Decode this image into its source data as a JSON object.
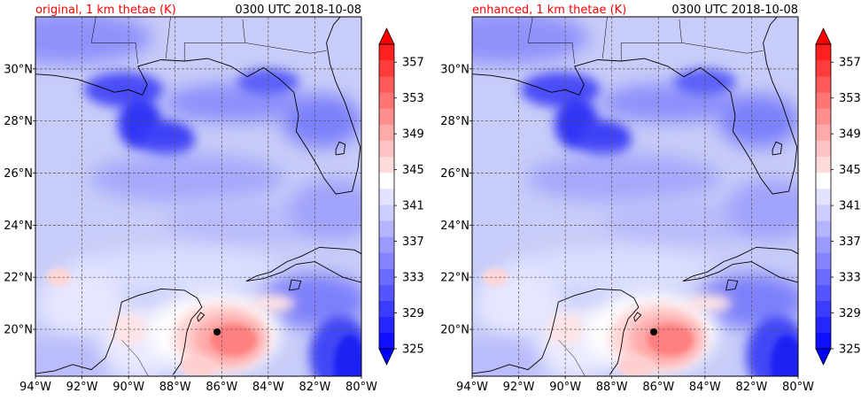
{
  "panels": [
    {
      "id": "original",
      "title_left": "original, 1 km thetae (K)",
      "title_right": "0300 UTC 2018-10-08"
    },
    {
      "id": "enhanced",
      "title_left": "enhanced, 1 km thetae (K)",
      "title_right": "0300 UTC 2018-10-08"
    }
  ],
  "colors": {
    "title_left": "#ff0000",
    "title_right": "#000000",
    "ocean_base": "#c8ccf8",
    "coastline": "#000000",
    "grid": "#555555",
    "storm_center_marker": "#000000"
  },
  "chart_data": [
    {
      "type": "heatmap",
      "title": "original, 1 km thetae (K)",
      "subtitle": "0300 UTC 2018-10-08",
      "x_ticks": [
        "94°W",
        "92°W",
        "90°W",
        "88°W",
        "86°W",
        "84°W",
        "82°W",
        "80°W"
      ],
      "y_ticks": [
        "20°N",
        "22°N",
        "24°N",
        "26°N",
        "28°N",
        "30°N"
      ],
      "xlim": [
        -94,
        -80
      ],
      "ylim": [
        18.2,
        32
      ],
      "grid": true,
      "colorbar": {
        "ticks": [
          "325",
          "329",
          "333",
          "337",
          "341",
          "345",
          "349",
          "353",
          "357"
        ],
        "levels": [
          325,
          327,
          329,
          331,
          333,
          335,
          337,
          339,
          341,
          343,
          345,
          347,
          349,
          351,
          353,
          355,
          357,
          359
        ],
        "extend": "both",
        "colors": [
          "#0f0fff",
          "#2525ff",
          "#3c3cff",
          "#5555ff",
          "#6b6bff",
          "#8585ff",
          "#9b9bff",
          "#b5b5ff",
          "#cdcdff",
          "#e3e3ff",
          "#ffffff",
          "#ffdcdc",
          "#ffc3c3",
          "#ffa9a9",
          "#ff8f8f",
          "#ff7474",
          "#ff5a5a",
          "#ff3c3c",
          "#ff1f1f"
        ],
        "extend_low_color": "#0000ff",
        "extend_high_color": "#ff0000"
      },
      "storm_center": {
        "lon": -86.2,
        "lat": 19.9
      }
    },
    {
      "type": "heatmap",
      "title": "enhanced, 1 km thetae (K)",
      "subtitle": "0300 UTC 2018-10-08",
      "x_ticks": [
        "94°W",
        "92°W",
        "90°W",
        "88°W",
        "86°W",
        "84°W",
        "82°W",
        "80°W"
      ],
      "y_ticks": [
        "20°N",
        "22°N",
        "24°N",
        "26°N",
        "28°N",
        "30°N"
      ],
      "xlim": [
        -94,
        -80
      ],
      "ylim": [
        18.2,
        32
      ],
      "grid": true,
      "colorbar": {
        "ticks": [
          "325",
          "329",
          "333",
          "337",
          "341",
          "345",
          "349",
          "353",
          "357"
        ],
        "levels": [
          325,
          327,
          329,
          331,
          333,
          335,
          337,
          339,
          341,
          343,
          345,
          347,
          349,
          351,
          353,
          355,
          357,
          359
        ],
        "extend": "both",
        "colors": [
          "#0f0fff",
          "#2525ff",
          "#3c3cff",
          "#5555ff",
          "#6b6bff",
          "#8585ff",
          "#9b9bff",
          "#b5b5ff",
          "#cdcdff",
          "#e3e3ff",
          "#ffffff",
          "#ffdcdc",
          "#ffc3c3",
          "#ffa9a9",
          "#ff8f8f",
          "#ff7474",
          "#ff5a5a",
          "#ff3c3c",
          "#ff1f1f"
        ],
        "extend_low_color": "#0000ff",
        "extend_high_color": "#ff0000"
      },
      "storm_center": {
        "lon": -86.2,
        "lat": 19.9
      }
    }
  ]
}
